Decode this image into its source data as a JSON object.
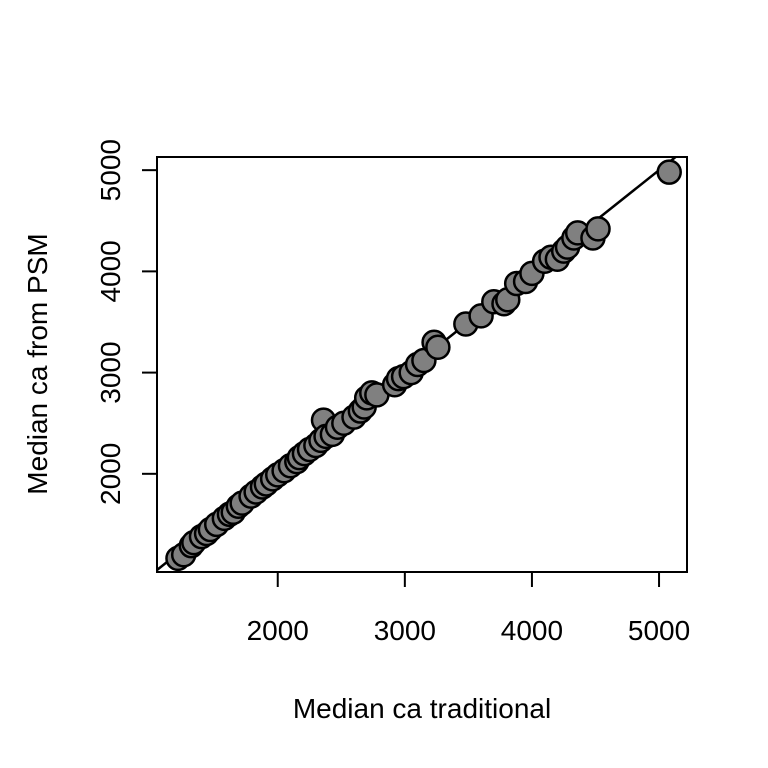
{
  "chart_data": {
    "type": "scatter",
    "xlabel": "Median ca traditional",
    "ylabel": "Median ca from PSM",
    "xlim": [
      1050,
      5220
    ],
    "ylim": [
      1030,
      5130
    ],
    "x_ticks": [
      2000,
      3000,
      4000,
      5000
    ],
    "y_ticks": [
      2000,
      3000,
      4000,
      5000
    ],
    "x_tick_labels": [
      "2000",
      "3000",
      "4000",
      "5000"
    ],
    "y_tick_labels": [
      "2000",
      "3000",
      "4000",
      "5000"
    ],
    "grid": false,
    "reference_line": {
      "intercept": 0,
      "slope": 1
    },
    "marker_fill": "#808080",
    "marker_edge": "#000000",
    "points": [
      [
        1215,
        1165
      ],
      [
        1260,
        1200
      ],
      [
        1320,
        1290
      ],
      [
        1340,
        1320
      ],
      [
        1400,
        1380
      ],
      [
        1440,
        1410
      ],
      [
        1470,
        1450
      ],
      [
        1520,
        1500
      ],
      [
        1580,
        1560
      ],
      [
        1620,
        1600
      ],
      [
        1650,
        1620
      ],
      [
        1690,
        1680
      ],
      [
        1720,
        1710
      ],
      [
        1790,
        1780
      ],
      [
        1830,
        1820
      ],
      [
        1880,
        1870
      ],
      [
        1910,
        1900
      ],
      [
        1960,
        1950
      ],
      [
        2000,
        1990
      ],
      [
        2050,
        2030
      ],
      [
        2100,
        2080
      ],
      [
        2150,
        2120
      ],
      [
        2170,
        2160
      ],
      [
        2210,
        2200
      ],
      [
        2250,
        2240
      ],
      [
        2300,
        2280
      ],
      [
        2340,
        2330
      ],
      [
        2360,
        2530
      ],
      [
        2380,
        2370
      ],
      [
        2430,
        2390
      ],
      [
        2470,
        2460
      ],
      [
        2520,
        2500
      ],
      [
        2600,
        2560
      ],
      [
        2650,
        2620
      ],
      [
        2680,
        2660
      ],
      [
        2700,
        2750
      ],
      [
        2740,
        2800
      ],
      [
        2780,
        2780
      ],
      [
        2920,
        2880
      ],
      [
        2950,
        2940
      ],
      [
        2990,
        2960
      ],
      [
        3050,
        3000
      ],
      [
        3100,
        3080
      ],
      [
        3150,
        3120
      ],
      [
        3230,
        3300
      ],
      [
        3260,
        3250
      ],
      [
        3480,
        3480
      ],
      [
        3600,
        3560
      ],
      [
        3700,
        3700
      ],
      [
        3780,
        3680
      ],
      [
        3810,
        3720
      ],
      [
        3880,
        3880
      ],
      [
        3950,
        3900
      ],
      [
        4000,
        3980
      ],
      [
        4100,
        4100
      ],
      [
        4150,
        4140
      ],
      [
        4200,
        4120
      ],
      [
        4250,
        4200
      ],
      [
        4280,
        4240
      ],
      [
        4330,
        4330
      ],
      [
        4360,
        4380
      ],
      [
        4480,
        4330
      ],
      [
        4520,
        4420
      ],
      [
        5080,
        4980
      ]
    ]
  }
}
